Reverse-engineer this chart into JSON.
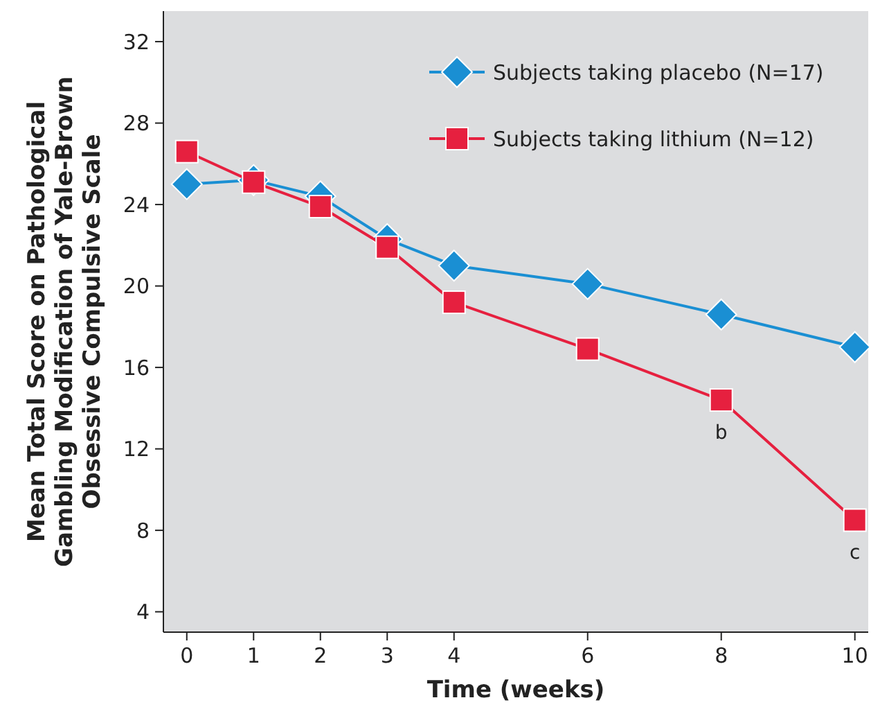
{
  "chart_data": {
    "type": "line",
    "xlabel": "Time (weeks)",
    "ylabel": "Mean Total Score on Pathological\nGambling Modification of Yale-Brown\nObsessive Compulsive Scale",
    "x": [
      0,
      1,
      2,
      3,
      4,
      6,
      8,
      10
    ],
    "series": [
      {
        "name": "Subjects taking placebo (N=17)",
        "color": "#1a8fd3",
        "marker": "diamond",
        "values": [
          25.0,
          25.2,
          24.4,
          22.3,
          21.0,
          20.1,
          18.6,
          17.0
        ]
      },
      {
        "name": "Subjects taking lithium (N=12)",
        "color": "#e6203f",
        "marker": "square",
        "values": [
          26.6,
          25.1,
          23.9,
          21.9,
          19.2,
          16.9,
          14.4,
          8.5
        ]
      }
    ],
    "xlim": [
      -0.35,
      10.2
    ],
    "ylim": [
      3,
      33.5
    ],
    "xticks": [
      0,
      1,
      2,
      3,
      4,
      6,
      8,
      10
    ],
    "yticks": [
      4,
      8,
      12,
      16,
      20,
      24,
      28,
      32
    ],
    "grid": false,
    "legend": "top right",
    "line_style": "solid",
    "annotations": [
      {
        "text": "b",
        "x": 8,
        "y": 14.4
      },
      {
        "text": "c",
        "x": 10,
        "y": 8.5
      }
    ]
  }
}
